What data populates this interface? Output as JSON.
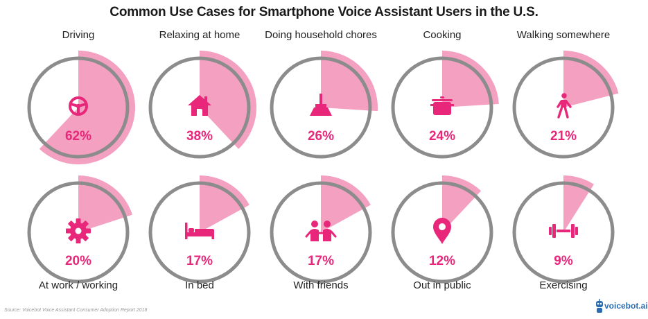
{
  "title": "Common Use Cases for Smartphone Voice Assistant Users in the U.S.",
  "source": "Source: Voicebot Voice Assistant Consumer Adoption Report 2018",
  "brand": "voicebot.ai",
  "colors": {
    "accent": "#f4a0c0",
    "icon": "#e8277a",
    "value": "#e8277a",
    "ring": "#8c8c8c",
    "label": "#222222"
  },
  "chart_data": {
    "type": "pie",
    "title": "Common Use Cases for Smartphone Voice Assistant Users in the U.S.",
    "unit": "%",
    "items": [
      {
        "label": "Driving",
        "value": 62,
        "icon": "steering-wheel-icon"
      },
      {
        "label": "Relaxing at home",
        "value": 38,
        "icon": "house-icon"
      },
      {
        "label": "Doing household chores",
        "value": 26,
        "icon": "broom-icon"
      },
      {
        "label": "Cooking",
        "value": 24,
        "icon": "cooking-pot-icon"
      },
      {
        "label": "Walking somewhere",
        "value": 21,
        "icon": "walking-person-icon"
      },
      {
        "label": "At work / working",
        "value": 20,
        "icon": "gear-icon"
      },
      {
        "label": "In bed",
        "value": 17,
        "icon": "bed-icon"
      },
      {
        "label": "With friends",
        "value": 17,
        "icon": "friends-icon"
      },
      {
        "label": "Out in public",
        "value": 12,
        "icon": "map-pin-icon"
      },
      {
        "label": "Exercising",
        "value": 9,
        "icon": "dumbbell-icon"
      }
    ]
  }
}
